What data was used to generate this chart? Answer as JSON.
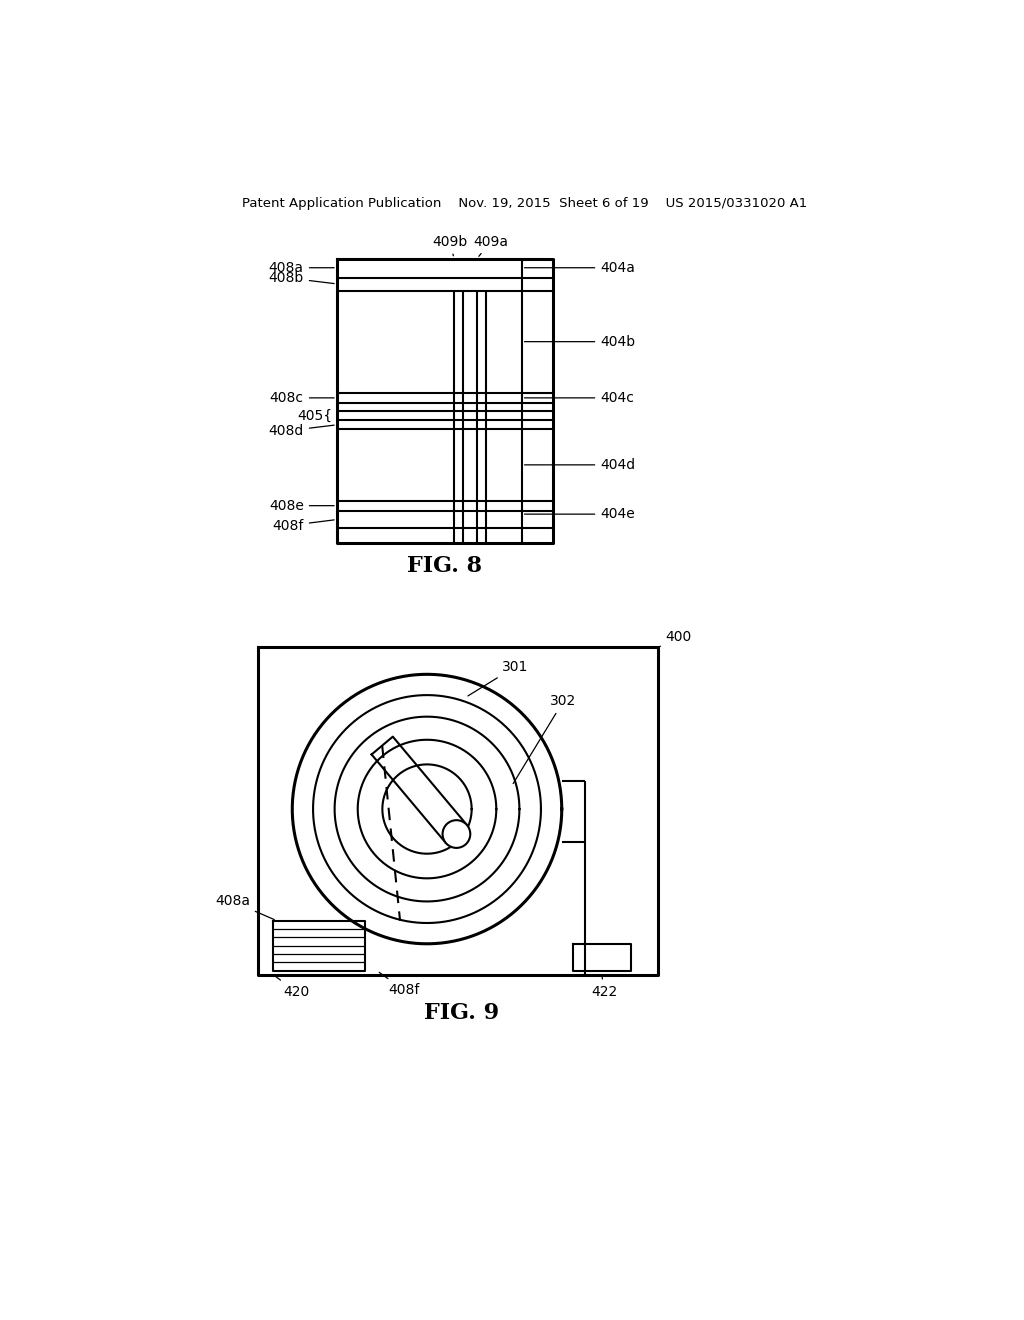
{
  "bg_color": "#ffffff",
  "line_color": "#000000",
  "header_text": "Patent Application Publication    Nov. 19, 2015  Sheet 6 of 19    US 2015/0331020 A1",
  "fig8_title": "FIG. 8",
  "fig9_title": "FIG. 9"
}
